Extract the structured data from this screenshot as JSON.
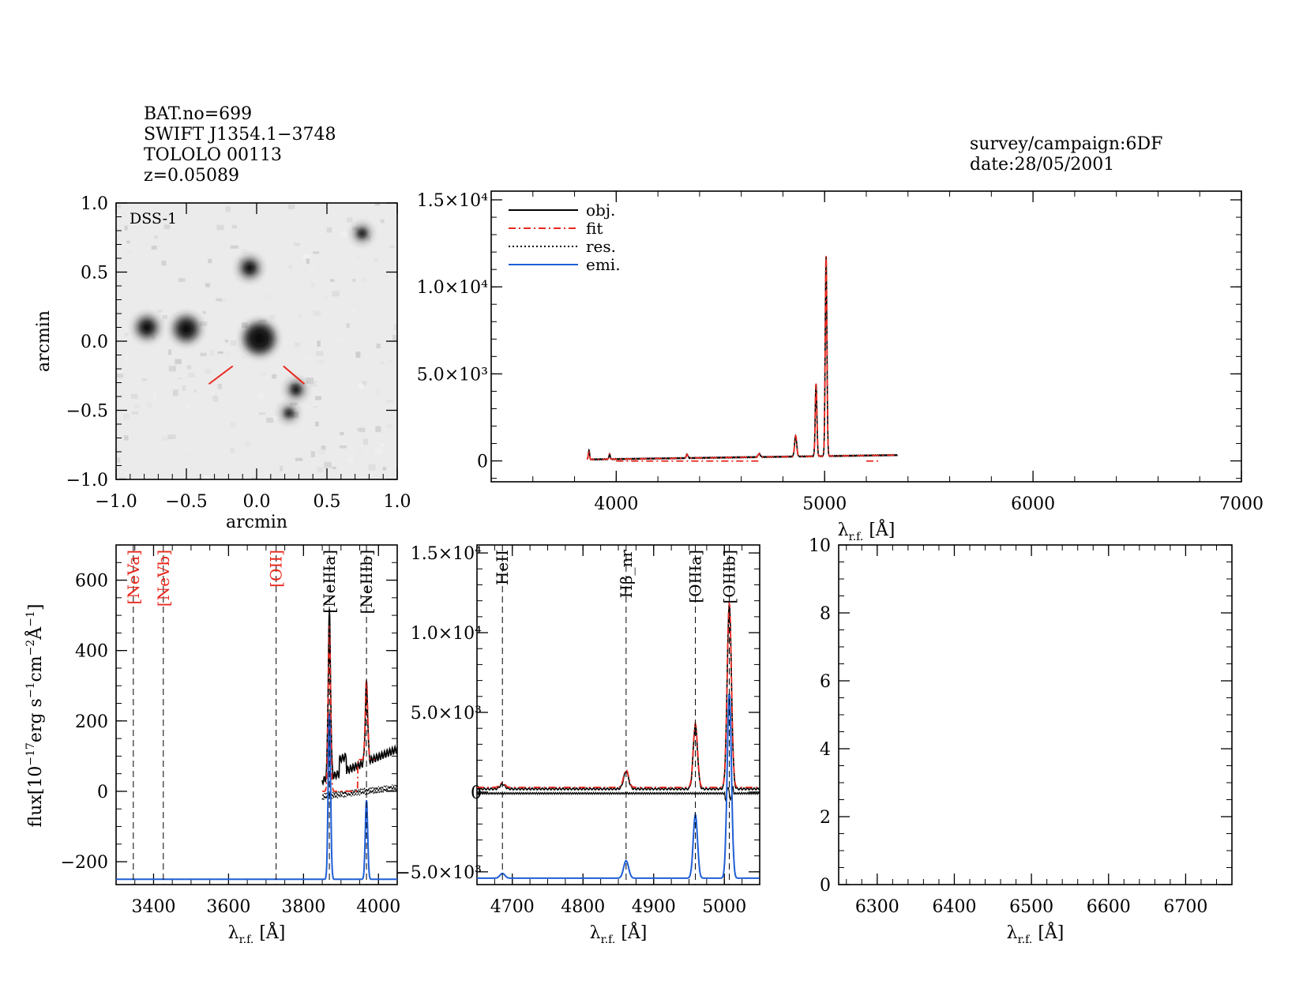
{
  "header": {
    "bat_no": "BAT.no=699",
    "swift_name": "SWIFT J1354.1−3748",
    "counterpart": "TOLOLO 00113",
    "redshift": "z=0.05089",
    "survey": "survey/campaign:6DF",
    "date": "date:28/05/2001"
  },
  "colors": {
    "object": "#000000",
    "fit": "#e8281e",
    "residual": "#000000",
    "emission": "#1f5fd6",
    "dashed_lines": "#000000"
  },
  "chart_data": [
    {
      "id": "dss-image",
      "type": "image",
      "label": "DSS-1",
      "xlabel": "arcmin",
      "ylabel": "arcmin",
      "xlim": [
        -1.0,
        1.0
      ],
      "ylim": [
        -1.0,
        1.0
      ],
      "xticks": [
        "−1.0",
        "−0.5",
        "0.0",
        "0.5",
        "1.0"
      ],
      "yticks": [
        "−1.0",
        "−0.5",
        "0.0",
        "0.5",
        "1.0"
      ],
      "sources": [
        {
          "x": 0.02,
          "y": 0.02,
          "flux": 1.0
        },
        {
          "x": -0.5,
          "y": 0.09,
          "flux": 0.75
        },
        {
          "x": -0.78,
          "y": 0.1,
          "flux": 0.6
        },
        {
          "x": -0.05,
          "y": 0.53,
          "flux": 0.5
        },
        {
          "x": 0.28,
          "y": -0.35,
          "flux": 0.35
        },
        {
          "x": 0.75,
          "y": 0.78,
          "flux": 0.3
        },
        {
          "x": 0.23,
          "y": -0.52,
          "flux": 0.25
        }
      ]
    },
    {
      "id": "full-spectrum",
      "type": "line",
      "xlabel": "λ_r.f. [Å]",
      "xlim": [
        3400,
        7000
      ],
      "ylim": [
        -1200,
        15500
      ],
      "xticks": [
        "4000",
        "5000",
        "6000",
        "7000"
      ],
      "xtick_values": [
        4000,
        5000,
        6000,
        7000
      ],
      "yticks": [
        "0",
        "5.0×10³",
        "1.0×10⁴",
        "1.5×10⁴"
      ],
      "ytick_values": [
        0,
        5000,
        10000,
        15000
      ],
      "legend": [
        {
          "name": "obj.",
          "style": "solid-black"
        },
        {
          "name": "fit",
          "style": "dashdot-red"
        },
        {
          "name": "res.",
          "style": "dotted-black"
        },
        {
          "name": "emi.",
          "style": "solid-blue"
        }
      ],
      "range": [
        3860,
        5350
      ],
      "lines": [
        {
          "center": 3869,
          "amp": 520,
          "sigma": 3
        },
        {
          "center": 3968,
          "amp": 300,
          "sigma": 3
        },
        {
          "center": 4340,
          "amp": 220,
          "sigma": 4
        },
        {
          "center": 4686,
          "amp": 200,
          "sigma": 5
        },
        {
          "center": 4861,
          "amp": 1200,
          "sigma": 5
        },
        {
          "center": 4959,
          "amp": 4200,
          "sigma": 4
        },
        {
          "center": 5007,
          "amp": 11600,
          "sigma": 4
        }
      ]
    },
    {
      "id": "neon-panel",
      "type": "line",
      "xlabel": "λ_r.f. [Å]",
      "ylabel": "flux[10⁻¹⁷erg s⁻¹cm⁻²Å⁻¹]",
      "xlim": [
        3300,
        4050
      ],
      "ylim": [
        -265,
        700
      ],
      "xticks": [
        "3400",
        "3600",
        "3800",
        "4000"
      ],
      "xtick_values": [
        3400,
        3600,
        3800,
        4000
      ],
      "yticks": [
        "−200",
        "0",
        "200",
        "400",
        "600"
      ],
      "ytick_values": [
        -200,
        0,
        200,
        400,
        600
      ],
      "markers": [
        {
          "label": "[NeVa]",
          "wave": 3346,
          "color": "red"
        },
        {
          "label": "[NeVb]",
          "wave": 3426,
          "color": "red"
        },
        {
          "label": "[OII]",
          "wave": 3727,
          "color": "red"
        },
        {
          "label": "[NeIIIa]",
          "wave": 3869,
          "color": "black"
        },
        {
          "label": "[NeIIIb]",
          "wave": 3968,
          "color": "black"
        }
      ],
      "data_start": 3850,
      "emission_base": -250,
      "lines": [
        {
          "center": 3869,
          "amp": 470,
          "sigma": 3.2
        },
        {
          "center": 3968,
          "amp": 225,
          "sigma": 3.2
        }
      ]
    },
    {
      "id": "oxygen-panel",
      "type": "line",
      "xlabel": "λ_r.f. [Å]",
      "xlim": [
        4650,
        5050
      ],
      "ylim": [
        -5800,
        15500
      ],
      "xticks": [
        "4700",
        "4800",
        "4900",
        "5000"
      ],
      "xtick_values": [
        4700,
        4800,
        4900,
        5000
      ],
      "yticks": [
        "−5.0×10³",
        "0",
        "5.0×10³",
        "1.0×10⁴",
        "1.5×10⁴"
      ],
      "ytick_values": [
        -5000,
        0,
        5000,
        10000,
        15000
      ],
      "markers": [
        {
          "label": "HeII",
          "wave": 4686,
          "color": "black"
        },
        {
          "label": "Hβ_nr",
          "wave": 4861,
          "color": "black"
        },
        {
          "label": "[OIIIa]",
          "wave": 4959,
          "color": "black"
        },
        {
          "label": "[OIIIb]",
          "wave": 5007,
          "color": "black"
        }
      ],
      "emission_base": -5400,
      "lines": [
        {
          "center": 4686,
          "amp": 300,
          "sigma": 3.5
        },
        {
          "center": 4861,
          "amp": 1100,
          "sigma": 3.5
        },
        {
          "center": 4959,
          "amp": 4000,
          "sigma": 3.0
        },
        {
          "center": 5007,
          "amp": 11600,
          "sigma": 3.0
        }
      ]
    },
    {
      "id": "halpha-panel",
      "type": "line",
      "xlabel": "λ_r.f. [Å]",
      "xlim": [
        6250,
        6760
      ],
      "ylim": [
        0,
        10
      ],
      "xticks": [
        "6300",
        "6400",
        "6500",
        "6600",
        "6700"
      ],
      "xtick_values": [
        6300,
        6400,
        6500,
        6600,
        6700
      ],
      "yticks": [
        "0",
        "2",
        "4",
        "6",
        "8",
        "10"
      ],
      "ytick_values": [
        0,
        2,
        4,
        6,
        8,
        10
      ]
    }
  ]
}
